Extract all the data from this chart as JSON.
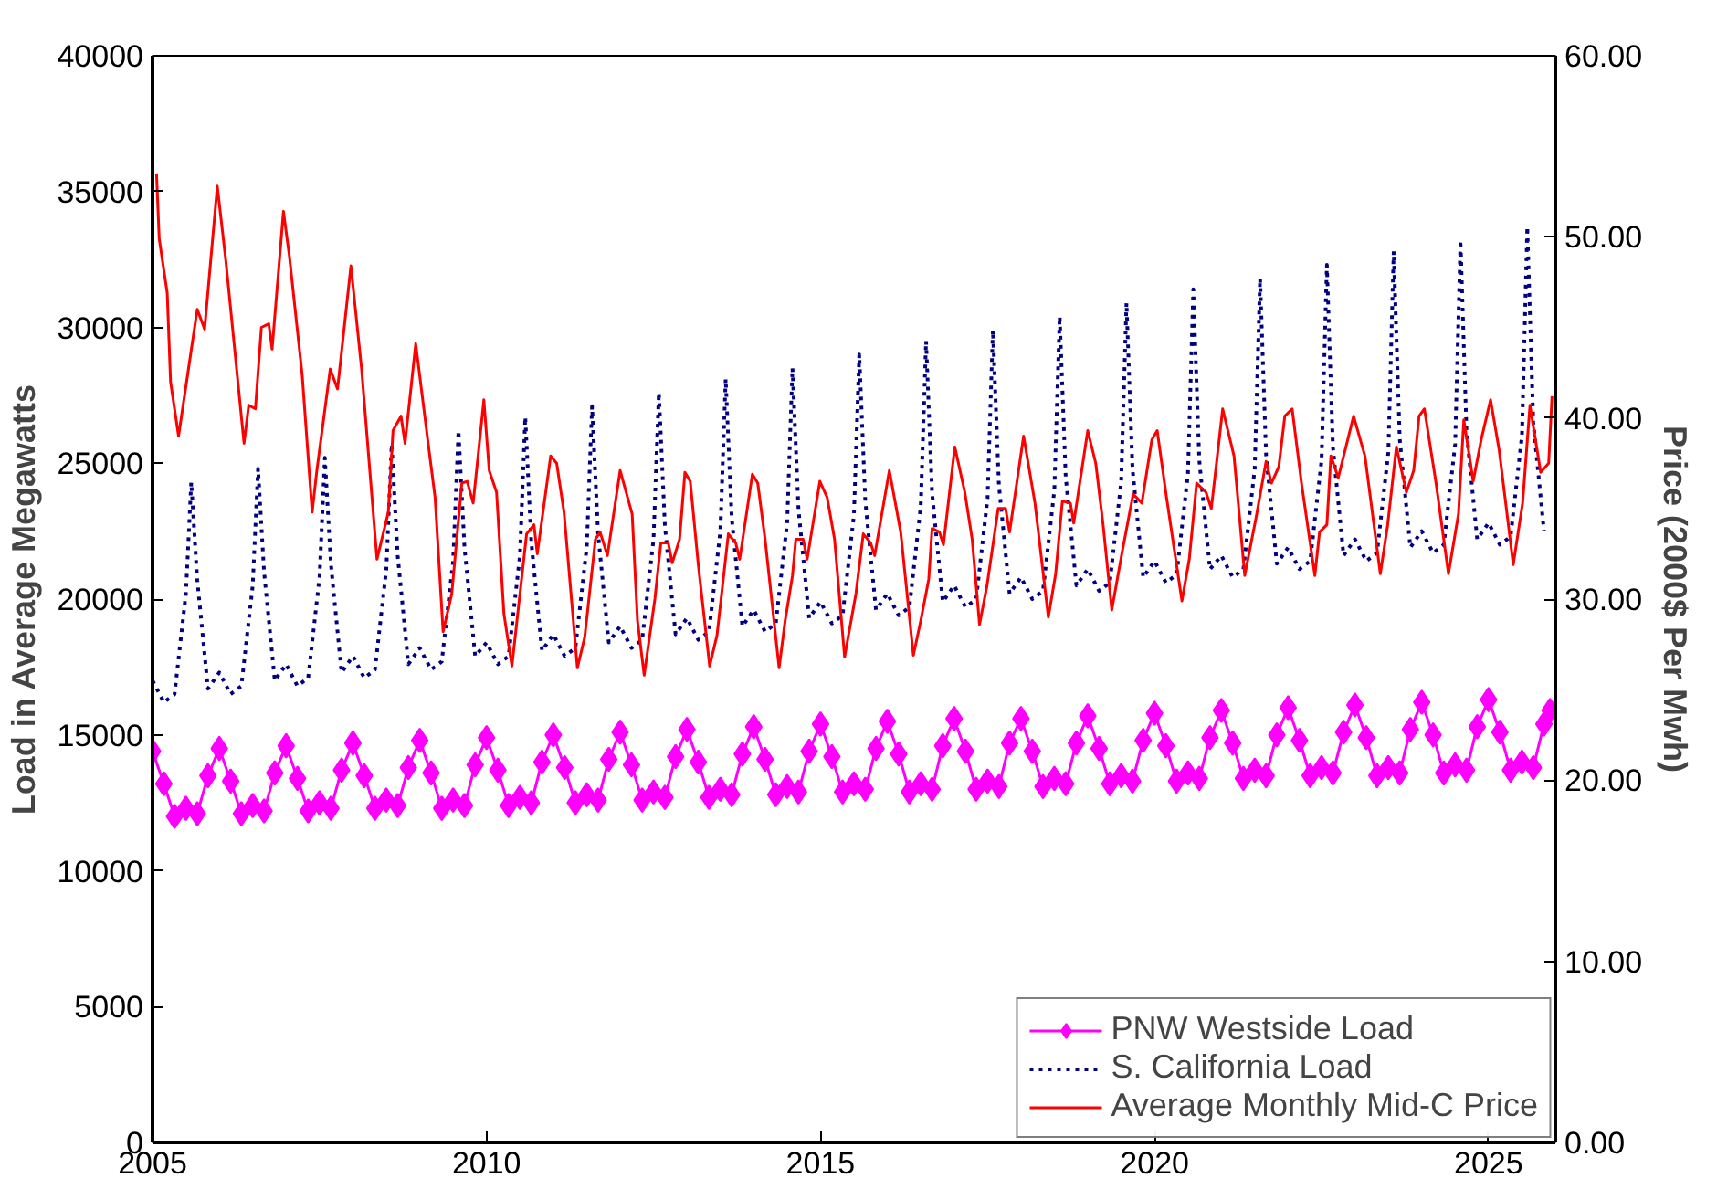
{
  "chart_data": {
    "type": "line",
    "ylabel": "Load in Average Megawatts",
    "y2label": "Price (2000$ Per Mwh)",
    "xlim": [
      2005,
      2026
    ],
    "xticks": [
      2005,
      2010,
      2015,
      2020,
      2025
    ],
    "ylim": [
      0,
      40000
    ],
    "yticks": [
      0,
      5000,
      10000,
      15000,
      20000,
      25000,
      30000,
      35000,
      40000
    ],
    "y2lim": [
      0,
      60
    ],
    "y2ticks": [
      {
        "value": 0,
        "label": "0.00"
      },
      {
        "value": 10,
        "label": "10.00"
      },
      {
        "value": 20,
        "label": "20.00"
      },
      {
        "value": 30,
        "label": "30.00"
      },
      {
        "value": 40,
        "label": "40.00"
      },
      {
        "value": 50,
        "label": "50.00"
      },
      {
        "value": 60,
        "label": "60.00"
      }
    ],
    "grid": false,
    "legend": "bottom right",
    "series": [
      {
        "name": "PNW Westside Load",
        "color": "#ff00ff",
        "marker": "diamond",
        "line_style": "solid",
        "x": [
          2005,
          2005.17,
          2005.33,
          2005.5,
          2005.67,
          2005.83,
          2006,
          2006.17,
          2006.33,
          2006.5,
          2006.67,
          2006.83,
          2007,
          2007.17,
          2007.33,
          2007.5,
          2007.67,
          2007.83,
          2008,
          2008.17,
          2008.33,
          2008.5,
          2008.67,
          2008.83,
          2009,
          2009.17,
          2009.33,
          2009.5,
          2009.67,
          2009.83,
          2010,
          2010.17,
          2010.33,
          2010.5,
          2010.67,
          2010.83,
          2011,
          2011.17,
          2011.33,
          2011.5,
          2011.67,
          2011.83,
          2012,
          2012.17,
          2012.33,
          2012.5,
          2012.67,
          2012.83,
          2013,
          2013.17,
          2013.33,
          2013.5,
          2013.67,
          2013.83,
          2014,
          2014.17,
          2014.33,
          2014.5,
          2014.67,
          2014.83,
          2015,
          2015.17,
          2015.33,
          2015.5,
          2015.67,
          2015.83,
          2016,
          2016.17,
          2016.33,
          2016.5,
          2016.67,
          2016.83,
          2017,
          2017.17,
          2017.33,
          2017.5,
          2017.67,
          2017.83,
          2018,
          2018.17,
          2018.33,
          2018.5,
          2018.67,
          2018.83,
          2019,
          2019.17,
          2019.33,
          2019.5,
          2019.67,
          2019.83,
          2020,
          2020.17,
          2020.33,
          2020.5,
          2020.67,
          2020.83,
          2021,
          2021.17,
          2021.33,
          2021.5,
          2021.67,
          2021.83,
          2022,
          2022.17,
          2022.33,
          2022.5,
          2022.67,
          2022.83,
          2023,
          2023.17,
          2023.33,
          2023.5,
          2023.67,
          2023.83,
          2024,
          2024.17,
          2024.33,
          2024.5,
          2024.67,
          2024.83,
          2025,
          2025.17,
          2025.33,
          2025.5,
          2025.67,
          2025.83,
          2025.92
        ],
        "values": [
          14400,
          13200,
          12000,
          12300,
          12100,
          13500,
          14500,
          13300,
          12100,
          12400,
          12200,
          13600,
          14600,
          13400,
          12200,
          12500,
          12300,
          13700,
          14700,
          13500,
          12300,
          12600,
          12400,
          13800,
          14800,
          13600,
          12300,
          12600,
          12400,
          13900,
          14900,
          13700,
          12400,
          12700,
          12500,
          14000,
          15000,
          13800,
          12500,
          12800,
          12600,
          14100,
          15100,
          13900,
          12600,
          12900,
          12700,
          14200,
          15200,
          14000,
          12700,
          13000,
          12800,
          14300,
          15300,
          14100,
          12800,
          13100,
          12900,
          14400,
          15400,
          14200,
          12900,
          13200,
          13000,
          14500,
          15500,
          14300,
          12900,
          13200,
          13000,
          14600,
          15600,
          14400,
          13000,
          13300,
          13100,
          14700,
          15600,
          14400,
          13100,
          13400,
          13200,
          14700,
          15700,
          14500,
          13200,
          13500,
          13300,
          14800,
          15800,
          14600,
          13300,
          13600,
          13400,
          14900,
          15900,
          14700,
          13400,
          13700,
          13500,
          15000,
          16000,
          14800,
          13500,
          13800,
          13600,
          15100,
          16100,
          14900,
          13500,
          13800,
          13600,
          15200,
          16200,
          15000,
          13600,
          13900,
          13700,
          15300,
          16300,
          15100,
          13700,
          14000,
          13800,
          15400,
          15900
        ]
      },
      {
        "name": "S. California Load",
        "color": "#000080",
        "line_style": "dotted",
        "x": [
          2005,
          2005.17,
          2005.33,
          2005.5,
          2005.58,
          2005.67,
          2005.83,
          2006,
          2006.17,
          2006.33,
          2006.5,
          2006.58,
          2006.67,
          2006.83,
          2007,
          2007.17,
          2007.33,
          2007.5,
          2007.58,
          2007.67,
          2007.83,
          2008,
          2008.17,
          2008.33,
          2008.5,
          2008.58,
          2008.67,
          2008.83,
          2009,
          2009.17,
          2009.33,
          2009.5,
          2009.58,
          2009.67,
          2009.83,
          2010,
          2010.17,
          2010.33,
          2010.5,
          2010.58,
          2010.67,
          2010.83,
          2011,
          2011.17,
          2011.33,
          2011.5,
          2011.58,
          2011.67,
          2011.83,
          2012,
          2012.17,
          2012.33,
          2012.5,
          2012.58,
          2012.67,
          2012.83,
          2013,
          2013.17,
          2013.33,
          2013.5,
          2013.58,
          2013.67,
          2013.83,
          2014,
          2014.17,
          2014.33,
          2014.5,
          2014.58,
          2014.67,
          2014.83,
          2015,
          2015.17,
          2015.33,
          2015.5,
          2015.58,
          2015.67,
          2015.83,
          2016,
          2016.17,
          2016.33,
          2016.5,
          2016.58,
          2016.67,
          2016.83,
          2017,
          2017.17,
          2017.33,
          2017.5,
          2017.58,
          2017.67,
          2017.83,
          2018,
          2018.17,
          2018.33,
          2018.5,
          2018.58,
          2018.67,
          2018.83,
          2019,
          2019.17,
          2019.33,
          2019.5,
          2019.58,
          2019.67,
          2019.83,
          2020,
          2020.17,
          2020.33,
          2020.5,
          2020.58,
          2020.67,
          2020.83,
          2021,
          2021.17,
          2021.33,
          2021.5,
          2021.58,
          2021.67,
          2021.83,
          2022,
          2022.17,
          2022.33,
          2022.5,
          2022.58,
          2022.67,
          2022.83,
          2023,
          2023.17,
          2023.33,
          2023.5,
          2023.58,
          2023.67,
          2023.83,
          2024,
          2024.17,
          2024.33,
          2024.5,
          2024.58,
          2024.67,
          2024.83,
          2025,
          2025.17,
          2025.33,
          2025.5,
          2025.58,
          2025.67,
          2025.83
        ],
        "values": [
          17000,
          16200,
          16500,
          20200,
          24300,
          20700,
          16700,
          17300,
          16500,
          16800,
          20500,
          24800,
          21000,
          17000,
          17600,
          16800,
          17100,
          20800,
          25200,
          21300,
          17300,
          17900,
          17100,
          17400,
          21100,
          25700,
          21600,
          17600,
          18200,
          17400,
          17700,
          21400,
          26200,
          21900,
          17900,
          18400,
          17600,
          17900,
          21600,
          26700,
          22100,
          18100,
          18700,
          17900,
          18200,
          21900,
          27100,
          22400,
          18400,
          19000,
          18200,
          18500,
          22200,
          27600,
          22700,
          18700,
          19300,
          18500,
          18800,
          22500,
          28100,
          23000,
          19000,
          19600,
          18800,
          19100,
          22800,
          28500,
          23300,
          19300,
          19900,
          19100,
          19400,
          23100,
          29000,
          23600,
          19600,
          20200,
          19400,
          19700,
          23400,
          29500,
          23900,
          19900,
          20500,
          19700,
          20000,
          23700,
          29900,
          24200,
          20200,
          20800,
          20000,
          20300,
          24000,
          30400,
          24500,
          20500,
          21100,
          20300,
          20600,
          24300,
          30900,
          24800,
          20800,
          21400,
          20600,
          20900,
          24600,
          31400,
          25100,
          21100,
          21600,
          20800,
          21100,
          24800,
          31800,
          25300,
          21300,
          21900,
          21100,
          21400,
          25100,
          32300,
          25600,
          21600,
          22200,
          21400,
          21700,
          25400,
          32800,
          25900,
          21900,
          22500,
          21700,
          22000,
          25700,
          33200,
          26200,
          22200,
          22800,
          22000,
          22300,
          26000,
          33700,
          26500,
          22500
        ]
      },
      {
        "name": "Average Monthly Mid-C Price",
        "color": "#ff0000",
        "line_style": "solid",
        "axis": "y2",
        "x": [
          2005.06,
          2005.1,
          2005.22,
          2005.27,
          2005.39,
          2005.67,
          2005.78,
          2005.97,
          2006.1,
          2006.37,
          2006.44,
          2006.54,
          2006.63,
          2006.74,
          2006.79,
          2006.96,
          2007.05,
          2007.24,
          2007.39,
          2007.46,
          2007.66,
          2007.77,
          2007.97,
          2008.13,
          2008.36,
          2008.53,
          2008.6,
          2008.72,
          2008.78,
          2008.94,
          2009.14,
          2009.23,
          2009.35,
          2009.48,
          2009.63,
          2009.71,
          2009.8,
          2009.96,
          2010.04,
          2010.15,
          2010.26,
          2010.38,
          2010.6,
          2010.71,
          2010.76,
          2010.96,
          2011.05,
          2011.16,
          2011.36,
          2011.47,
          2011.63,
          2011.7,
          2011.81,
          2012.0,
          2012.18,
          2012.26,
          2012.36,
          2012.52,
          2012.61,
          2012.72,
          2012.78,
          2012.89,
          2012.97,
          2013.05,
          2013.17,
          2013.34,
          2013.45,
          2013.62,
          2013.73,
          2013.79,
          2013.98,
          2014.06,
          2014.17,
          2014.38,
          2014.47,
          2014.58,
          2014.63,
          2014.74,
          2014.8,
          2014.99,
          2015.1,
          2015.21,
          2015.36,
          2015.53,
          2015.64,
          2015.75,
          2015.81,
          2016.03,
          2016.2,
          2016.39,
          2016.5,
          2016.62,
          2016.67,
          2016.78,
          2016.84,
          2017.01,
          2017.16,
          2017.27,
          2017.38,
          2017.49,
          2017.66,
          2017.77,
          2017.83,
          2018.04,
          2018.21,
          2018.41,
          2018.52,
          2018.62,
          2018.74,
          2018.79,
          2019.0,
          2019.12,
          2019.23,
          2019.36,
          2019.51,
          2019.68,
          2019.81,
          2019.96,
          2020.04,
          2020.18,
          2020.41,
          2020.52,
          2020.63,
          2020.77,
          2020.85,
          2021.02,
          2021.19,
          2021.35,
          2021.52,
          2021.67,
          2021.75,
          2021.86,
          2021.95,
          2022.06,
          2022.2,
          2022.4,
          2022.47,
          2022.58,
          2022.64,
          2022.75,
          2022.98,
          2023.15,
          2023.38,
          2023.49,
          2023.62,
          2023.77,
          2023.88,
          2023.96,
          2024.04,
          2024.21,
          2024.4,
          2024.55,
          2024.63,
          2024.77,
          2024.89,
          2025.03,
          2025.16,
          2025.37,
          2025.51,
          2025.62,
          2025.78,
          2025.9,
          2025.95
        ],
        "values": [
          53.5,
          49.9,
          46.9,
          42.0,
          39.0,
          46.0,
          44.9,
          52.8,
          48.6,
          38.6,
          40.7,
          40.5,
          45.0,
          45.2,
          43.8,
          51.4,
          48.9,
          42.4,
          34.8,
          37.1,
          42.7,
          41.6,
          48.4,
          42.7,
          32.2,
          34.8,
          39.3,
          40.1,
          38.6,
          44.1,
          38.2,
          35.6,
          28.2,
          30.3,
          36.4,
          36.5,
          35.3,
          41.0,
          37.1,
          35.9,
          29.2,
          26.3,
          33.6,
          34.1,
          32.5,
          37.9,
          37.5,
          34.8,
          26.2,
          27.9,
          33.3,
          33.7,
          32.4,
          37.1,
          34.7,
          28.8,
          25.8,
          30.0,
          33.1,
          33.1,
          32.0,
          33.3,
          37.0,
          36.5,
          31.9,
          26.3,
          28.0,
          33.6,
          33.1,
          32.2,
          36.9,
          36.4,
          33.3,
          26.2,
          28.8,
          31.3,
          33.3,
          33.3,
          32.2,
          36.5,
          35.6,
          33.3,
          26.8,
          30.3,
          33.6,
          33.1,
          32.4,
          37.1,
          33.7,
          26.9,
          28.8,
          31.1,
          33.9,
          33.7,
          33.0,
          38.4,
          35.9,
          33.3,
          28.6,
          30.7,
          35.0,
          35.0,
          33.7,
          39.0,
          35.3,
          29.0,
          31.4,
          35.4,
          35.3,
          34.2,
          39.3,
          37.5,
          34.1,
          29.4,
          32.5,
          35.8,
          35.3,
          38.8,
          39.3,
          35.6,
          29.9,
          32.2,
          36.4,
          35.9,
          35.0,
          40.5,
          37.9,
          31.3,
          34.5,
          37.6,
          36.4,
          37.3,
          40.1,
          40.5,
          36.4,
          31.3,
          33.7,
          34.1,
          37.9,
          36.7,
          40.1,
          37.9,
          31.4,
          34.1,
          38.4,
          35.9,
          37.1,
          40.1,
          40.5,
          36.5,
          31.4,
          34.7,
          39.9,
          36.5,
          38.8,
          41.0,
          38.2,
          31.9,
          35.3,
          40.7,
          37.0,
          37.5,
          41.2
        ]
      }
    ]
  }
}
